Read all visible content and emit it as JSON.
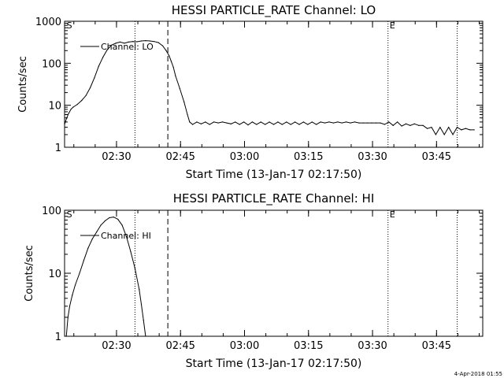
{
  "chart_data": [
    {
      "type": "line",
      "title": "HESSI PARTICLE_RATE Channel: LO",
      "xlabel": "Start Time (13-Jan-17 02:17:50)",
      "ylabel": "Counts/sec",
      "yscale": "log",
      "ylim": [
        1,
        1000
      ],
      "xlim_minutes_after_start": [
        0,
        98
      ],
      "x_tick_labels": [
        "02:30",
        "02:45",
        "03:00",
        "03:15",
        "03:30",
        "03:45"
      ],
      "y_tick_labels": [
        "1",
        "10",
        "100",
        "1000"
      ],
      "legend": "top-left",
      "series": [
        {
          "name": "Channel: LO",
          "x": [
            0.0,
            0.5,
            1.0,
            1.5,
            2.0,
            3.0,
            4.0,
            5.0,
            6.0,
            7.0,
            8.0,
            9.0,
            10.0,
            11.0,
            12.0,
            13.0,
            14.0,
            15.0,
            16.0,
            17.0,
            18.0,
            19.0,
            20.0,
            21.0,
            22.0,
            23.0,
            23.8,
            24.5,
            25.0,
            25.5,
            26.0,
            27.0,
            28.0,
            28.8,
            29.3,
            30.0,
            31.0,
            32.0,
            33.0,
            34.0,
            35.0,
            36.0,
            37.0,
            38.0,
            39.0,
            40.0,
            41.0,
            42.0,
            43.0,
            44.0,
            45.0,
            46.0,
            47.0,
            48.0,
            49.0,
            50.0,
            51.0,
            52.0,
            53.0,
            54.0,
            55.0,
            56.0,
            57.0,
            58.0,
            59.0,
            60.0,
            61.0,
            62.0,
            63.0,
            64.0,
            65.0,
            66.0,
            67.0,
            68.0,
            69.0,
            70.0,
            71.0,
            72.0,
            73.0,
            74.0,
            75.0,
            76.0,
            77.0,
            78.0,
            79.0,
            80.0,
            81.0,
            82.0,
            83.0,
            84.0,
            85.0,
            86.0,
            87.0,
            88.0,
            89.0,
            90.0,
            91.0,
            92.0,
            93.0,
            94.0,
            95.0,
            96.0
          ],
          "y": [
            3.5,
            5.0,
            6.5,
            8.0,
            9.0,
            10.5,
            13.0,
            17.0,
            26.0,
            45.0,
            85.0,
            140.0,
            210.0,
            270.0,
            300.0,
            320.0,
            300.0,
            320.0,
            330.0,
            325.0,
            340.0,
            345.0,
            340.0,
            330.0,
            310.0,
            260.0,
            200.0,
            150.0,
            110.0,
            80.0,
            50.0,
            25.0,
            12.0,
            6.0,
            4.0,
            3.5,
            4.0,
            3.6,
            4.0,
            3.5,
            4.0,
            3.8,
            4.0,
            3.8,
            3.6,
            4.0,
            3.5,
            4.0,
            3.4,
            4.0,
            3.5,
            4.0,
            3.5,
            4.0,
            3.5,
            4.0,
            3.5,
            4.0,
            3.5,
            4.0,
            3.5,
            4.0,
            3.5,
            4.0,
            3.5,
            4.0,
            3.8,
            4.0,
            3.8,
            4.0,
            3.8,
            4.0,
            3.8,
            4.0,
            3.8,
            3.8,
            3.8,
            3.8,
            3.8,
            3.8,
            3.5,
            4.0,
            3.3,
            4.0,
            3.2,
            3.6,
            3.3,
            3.6,
            3.3,
            3.3,
            2.8,
            3.0,
            2.0,
            3.0,
            2.0,
            3.0,
            2.0,
            3.0,
            2.6,
            2.8,
            2.6,
            2.6
          ]
        }
      ],
      "vertical_lines": [
        {
          "x": 16.5,
          "style": "dotted"
        },
        {
          "x": 24.2,
          "style": "dashed"
        },
        {
          "x": 75.8,
          "style": "dotted"
        },
        {
          "x": 92.0,
          "style": "dotted"
        }
      ],
      "annotations": [
        {
          "text": "S",
          "x": 0.3
        },
        {
          "text": "E",
          "x": 76.0
        }
      ]
    },
    {
      "type": "line",
      "title": "HESSI PARTICLE_RATE Channel: HI",
      "xlabel": "Start Time (13-Jan-17 02:17:50)",
      "ylabel": "Counts/sec",
      "yscale": "log",
      "ylim": [
        1,
        100
      ],
      "xlim_minutes_after_start": [
        0,
        98
      ],
      "x_tick_labels": [
        "02:30",
        "02:45",
        "03:00",
        "03:15",
        "03:30",
        "03:45"
      ],
      "y_tick_labels": [
        "1",
        "10",
        "100"
      ],
      "legend": "top-left",
      "series": [
        {
          "name": "Channel: HI",
          "x": [
            0.4,
            0.8,
            1.2,
            1.8,
            2.5,
            3.5,
            4.5,
            5.5,
            6.5,
            7.5,
            8.5,
            9.5,
            10.5,
            11.5,
            12.5,
            13.5,
            14.5,
            15.5,
            16.5,
            17.5,
            18.0,
            18.5,
            19.0
          ],
          "y": [
            1.0,
            2.0,
            3.0,
            4.5,
            6.5,
            10.0,
            16.0,
            25.0,
            35.0,
            45.0,
            58.0,
            68.0,
            76.0,
            78.0,
            72.0,
            58.0,
            38.0,
            22.0,
            12.0,
            5.5,
            3.2,
            1.8,
            1.0
          ]
        }
      ],
      "vertical_lines": [
        {
          "x": 16.5,
          "style": "dotted"
        },
        {
          "x": 24.2,
          "style": "dashed"
        },
        {
          "x": 75.8,
          "style": "dotted"
        },
        {
          "x": 92.0,
          "style": "dotted"
        }
      ],
      "annotations": [
        {
          "text": "S",
          "x": 0.3
        },
        {
          "text": "E",
          "x": 76.0
        }
      ]
    }
  ],
  "footer": {
    "timestamp": "4-Apr-2018 01:55"
  }
}
